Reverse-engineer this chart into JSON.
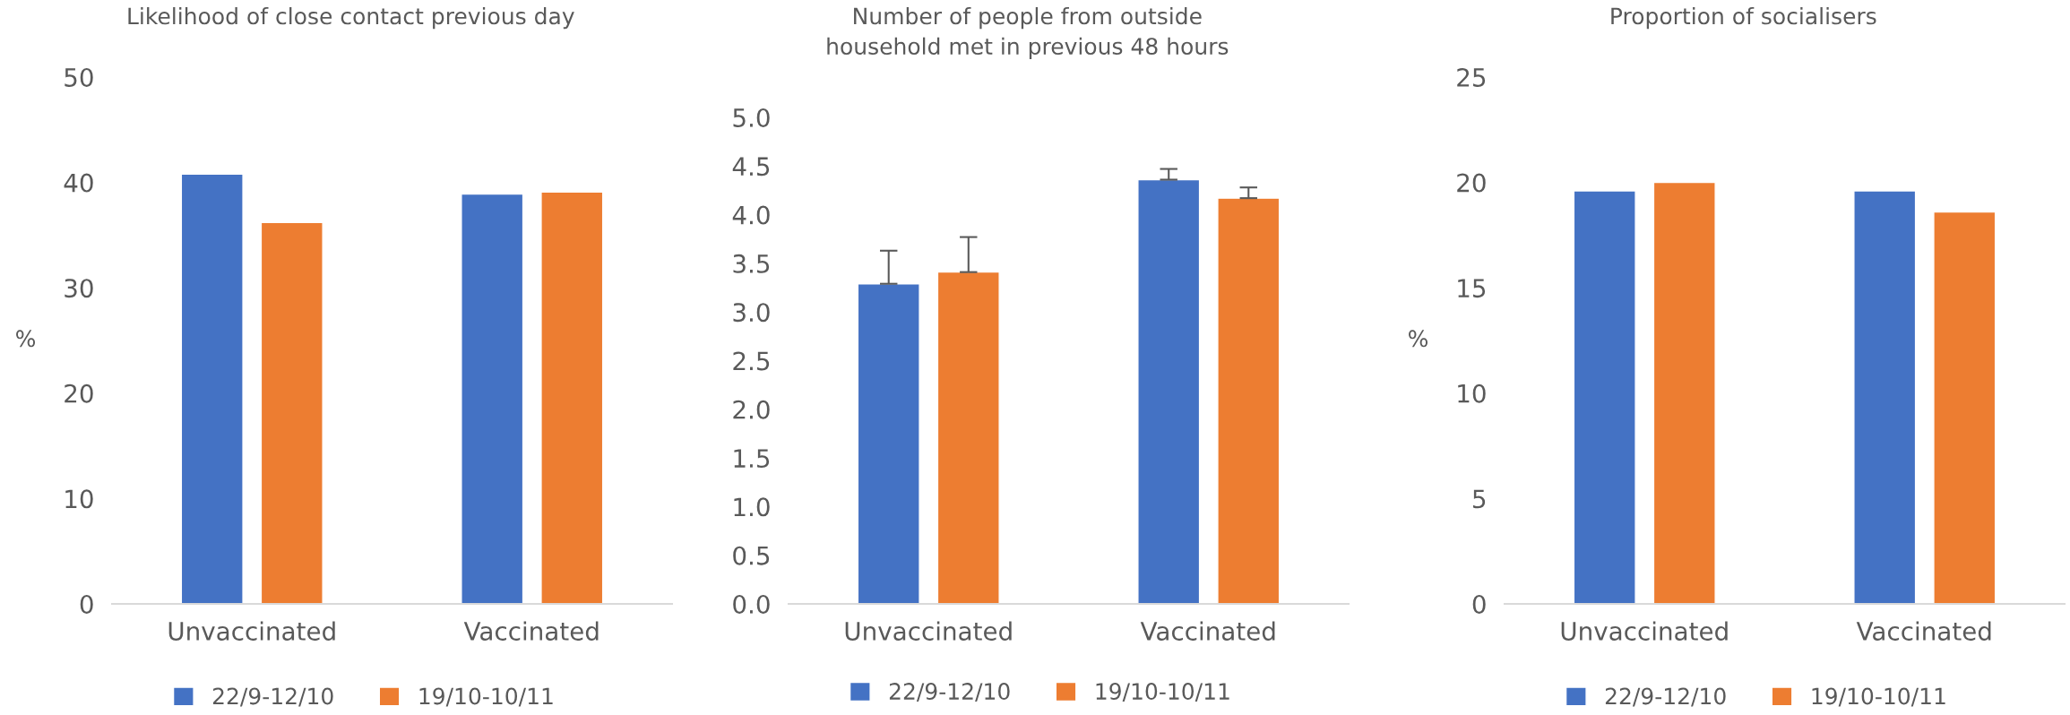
{
  "chart_data": [
    {
      "type": "bar",
      "title": "Likelihood of close contact previous day",
      "ylabel": "%",
      "categories": [
        "Unvaccinated",
        "Vaccinated"
      ],
      "series": [
        {
          "name": "22/9-12/10",
          "color": "#4472c4",
          "values": [
            40.8,
            38.9
          ]
        },
        {
          "name": "19/10-10/11",
          "color": "#ed7d31",
          "values": [
            36.2,
            39.1
          ]
        }
      ],
      "ylim": [
        0,
        50
      ],
      "yticks": [
        0,
        10,
        20,
        30,
        40,
        50
      ],
      "grid": false,
      "legend": "bottom"
    },
    {
      "type": "bar",
      "title": "Number of people from outside\nhousehold met in previous 48 hours",
      "categories": [
        "Unvaccinated",
        "Vaccinated"
      ],
      "series": [
        {
          "name": "22/9-12/10",
          "color": "#4472c4",
          "values": [
            3.29,
            4.36
          ],
          "errors": [
            [
              3.29,
              3.63
            ],
            [
              4.36,
              4.47
            ]
          ]
        },
        {
          "name": "19/10-10/11",
          "color": "#ed7d31",
          "values": [
            3.41,
            4.17
          ],
          "errors": [
            [
              3.41,
              3.77
            ],
            [
              4.17,
              4.28
            ]
          ]
        }
      ],
      "ylim": [
        0,
        5
      ],
      "yticks": [
        {
          "value": 0,
          "label": "0.0"
        },
        0.5,
        {
          "value": 1,
          "label": "1.0"
        },
        1.5,
        {
          "value": 2,
          "label": "2.0"
        },
        2.5,
        {
          "value": 3,
          "label": "3.0"
        },
        3.5,
        {
          "value": 4,
          "label": "4.0"
        },
        4.5,
        {
          "value": 5,
          "label": "5.0"
        }
      ],
      "grid": false,
      "legend": "bottom"
    },
    {
      "type": "bar",
      "title": "Proportion of socialisers",
      "ylabel": "%",
      "categories": [
        "Unvaccinated",
        "Vaccinated"
      ],
      "series": [
        {
          "name": "22/9-12/10",
          "color": "#4472c4",
          "values": [
            19.6,
            19.6
          ]
        },
        {
          "name": "19/10-10/11",
          "color": "#ed7d31",
          "values": [
            20.0,
            18.6
          ]
        }
      ],
      "ylim": [
        0,
        25
      ],
      "yticks": [
        0,
        5,
        10,
        15,
        20,
        25
      ],
      "grid": false,
      "legend": "bottom"
    }
  ]
}
